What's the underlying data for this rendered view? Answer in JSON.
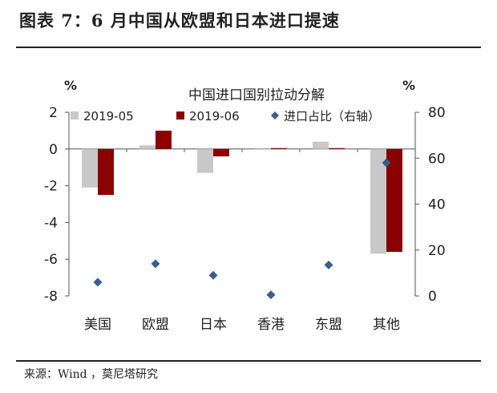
{
  "figure_title": "图表 7：6 月中国从欧盟和日本进口提速",
  "source": "来源：Wind ，莫尼塔研究",
  "chart_data": {
    "type": "bar",
    "title": "中国进口国别拉动分解",
    "categories": [
      "美国",
      "欧盟",
      "日本",
      "香港",
      "东盟",
      "其他"
    ],
    "series": [
      {
        "name": "2019-05",
        "kind": "bar",
        "axis": "left",
        "color": "#c8c8c8",
        "values": [
          -2.1,
          0.2,
          -1.3,
          0.0,
          0.4,
          -5.7
        ]
      },
      {
        "name": "2019-06",
        "kind": "bar",
        "axis": "left",
        "color": "#8b0000",
        "values": [
          -2.5,
          1.0,
          -0.4,
          0.05,
          0.05,
          -5.6
        ]
      },
      {
        "name": "进口占比（右轴）",
        "kind": "scatter",
        "axis": "right",
        "color": "#3a5f8a",
        "values": [
          6,
          14,
          9,
          0.5,
          13.5,
          58
        ]
      }
    ],
    "left_axis": {
      "unit": "%",
      "ylim": [
        -8,
        2
      ],
      "ticks": [
        "2",
        "0",
        "-2",
        "-4",
        "-6",
        "-8"
      ]
    },
    "right_axis": {
      "unit": "%",
      "ylim": [
        0,
        80
      ],
      "ticks": [
        "80",
        "60",
        "40",
        "20",
        "0"
      ]
    },
    "grid": false,
    "legend_position": "top"
  }
}
